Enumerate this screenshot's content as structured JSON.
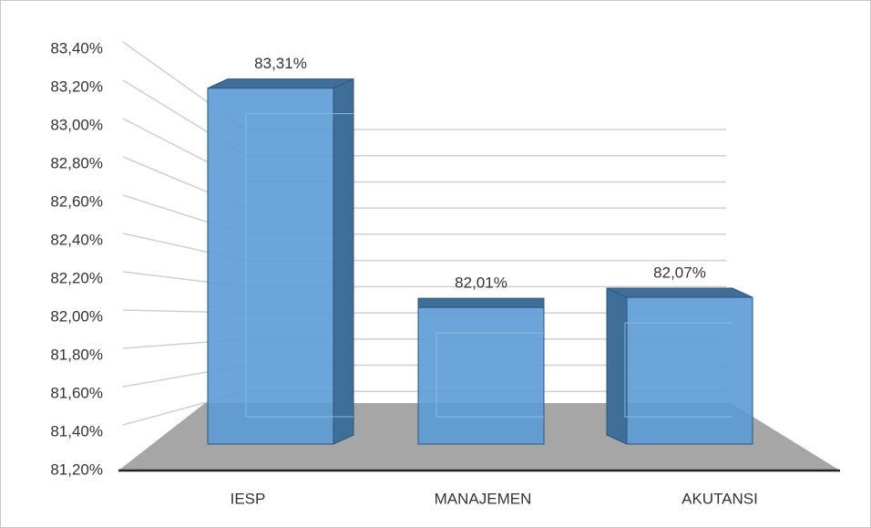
{
  "chart_data": {
    "type": "bar3d",
    "categories": [
      "IESP",
      "MANAJEMEN",
      "AKUTANSI"
    ],
    "values": [
      83.31,
      82.01,
      82.07
    ],
    "value_labels": [
      "83,31%",
      "82,01%",
      "82,07%"
    ],
    "color": "#5b9bd5",
    "ylim": [
      81.2,
      83.4
    ],
    "yticks": [
      {
        "value": 81.2,
        "label": "81,20%"
      },
      {
        "value": 81.4,
        "label": "81,40%"
      },
      {
        "value": 81.6,
        "label": "81,60%"
      },
      {
        "value": 81.8,
        "label": "81,80%"
      },
      {
        "value": 82.0,
        "label": "82,00%"
      },
      {
        "value": 82.2,
        "label": "82,20%"
      },
      {
        "value": 82.4,
        "label": "82,40%"
      },
      {
        "value": 82.6,
        "label": "82,60%"
      },
      {
        "value": 82.8,
        "label": "82,80%"
      },
      {
        "value": 83.0,
        "label": "83,00%"
      },
      {
        "value": 83.2,
        "label": "83,20%"
      },
      {
        "value": 83.4,
        "label": "83,40%"
      }
    ],
    "grid": true
  }
}
